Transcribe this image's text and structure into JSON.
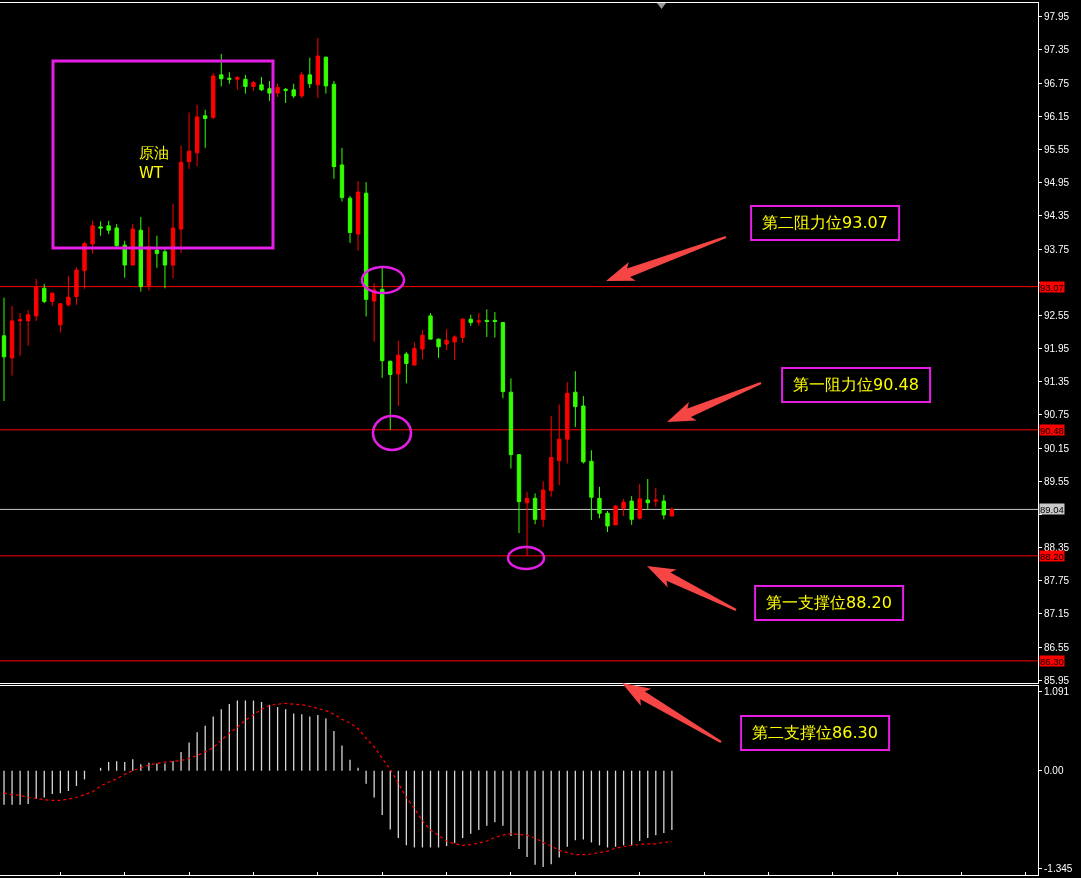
{
  "chart_data": [
    {
      "type": "candlestick",
      "title": "原油\nWT",
      "categories": [
        null,
        null,
        null,
        null,
        null,
        null,
        null,
        null,
        null,
        null,
        null,
        null,
        null,
        null,
        null,
        null,
        null,
        null,
        null,
        null,
        null,
        null,
        null,
        null,
        null,
        null,
        null,
        null,
        null,
        null,
        null,
        null,
        null,
        null,
        null,
        null,
        null,
        null,
        null,
        null,
        null,
        null,
        null,
        null,
        null,
        null,
        null,
        null,
        null,
        null,
        null,
        null,
        null,
        null,
        null,
        null,
        null,
        null,
        null,
        null,
        null,
        null,
        null,
        null,
        null,
        null,
        null,
        null,
        null,
        null,
        null,
        null,
        null,
        null,
        null,
        null,
        null,
        null,
        null,
        null,
        null,
        null,
        null,
        null,
        null,
        null,
        null,
        null,
        null,
        null,
        null,
        null,
        null,
        null,
        null,
        null,
        null,
        null,
        null,
        null,
        null,
        null,
        null,
        null,
        null,
        null,
        null,
        null,
        null,
        null,
        null,
        null,
        null,
        null,
        null,
        null,
        null,
        null,
        null,
        null,
        null,
        null,
        null,
        null,
        null,
        null,
        null,
        null,
        null
      ],
      "ohlc": [
        [
          92.18,
          92.87,
          91.0,
          91.8
        ],
        [
          91.78,
          92.72,
          91.46,
          92.45
        ],
        [
          92.45,
          92.59,
          91.82,
          92.47
        ],
        [
          92.45,
          92.65,
          92.0,
          92.56
        ],
        [
          92.54,
          93.21,
          92.45,
          93.06
        ],
        [
          93.04,
          93.12,
          92.77,
          92.8
        ],
        [
          92.8,
          92.96,
          92.72,
          92.95
        ],
        [
          92.38,
          92.77,
          92.24,
          92.76
        ],
        [
          92.74,
          93.26,
          92.71,
          92.88
        ],
        [
          92.89,
          93.42,
          92.74,
          93.37
        ],
        [
          93.36,
          93.88,
          93.03,
          93.85
        ],
        [
          93.84,
          94.26,
          93.67,
          94.17
        ],
        [
          94.15,
          94.25,
          93.99,
          94.13
        ],
        [
          94.17,
          94.26,
          94.02,
          94.09
        ],
        [
          94.13,
          94.2,
          93.79,
          93.81
        ],
        [
          93.82,
          93.9,
          93.23,
          93.46
        ],
        [
          93.46,
          94.2,
          93.46,
          94.11
        ],
        [
          94.09,
          94.33,
          92.98,
          93.07
        ],
        [
          93.07,
          94.15,
          93.0,
          93.79
        ],
        [
          93.73,
          93.99,
          93.41,
          93.67
        ],
        [
          93.7,
          93.75,
          93.04,
          93.46
        ],
        [
          93.46,
          94.57,
          93.22,
          94.13
        ],
        [
          94.11,
          95.62,
          93.68,
          95.32
        ],
        [
          95.33,
          96.22,
          95.2,
          95.52
        ],
        [
          95.49,
          96.36,
          95.25,
          96.14
        ],
        [
          96.16,
          96.27,
          95.58,
          96.11
        ],
        [
          96.13,
          96.93,
          96.1,
          96.88
        ],
        [
          96.9,
          97.28,
          96.69,
          96.83
        ],
        [
          96.84,
          96.95,
          96.74,
          96.82
        ],
        [
          96.82,
          96.88,
          96.63,
          96.85
        ],
        [
          96.82,
          96.9,
          96.56,
          96.69
        ],
        [
          96.69,
          96.79,
          96.61,
          96.76
        ],
        [
          96.72,
          96.86,
          96.61,
          96.63
        ],
        [
          96.65,
          96.79,
          96.43,
          96.57
        ],
        [
          96.57,
          96.74,
          96.5,
          96.67
        ],
        [
          96.64,
          96.66,
          96.39,
          96.62
        ],
        [
          96.63,
          96.74,
          96.48,
          96.52
        ],
        [
          96.52,
          96.95,
          96.48,
          96.9
        ],
        [
          96.9,
          97.21,
          96.66,
          96.74
        ],
        [
          96.72,
          97.57,
          96.48,
          97.24
        ],
        [
          97.22,
          97.23,
          96.56,
          96.7
        ],
        [
          96.73,
          96.79,
          95.02,
          95.24
        ],
        [
          95.27,
          95.58,
          94.61,
          94.68
        ],
        [
          94.67,
          94.71,
          93.86,
          94.05
        ],
        [
          94.02,
          94.98,
          93.72,
          94.78
        ],
        [
          94.76,
          94.96,
          92.53,
          92.84
        ],
        [
          92.81,
          93.13,
          92.07,
          93.01
        ],
        [
          93.02,
          93.42,
          91.42,
          91.73
        ],
        [
          91.72,
          91.73,
          90.48,
          91.48
        ],
        [
          91.49,
          92.09,
          90.91,
          91.83
        ],
        [
          91.85,
          91.89,
          91.32,
          91.68
        ],
        [
          91.65,
          92.06,
          91.65,
          91.95
        ],
        [
          91.94,
          92.28,
          91.76,
          92.19
        ],
        [
          92.54,
          92.59,
          92.12,
          92.12
        ],
        [
          92.12,
          92.13,
          91.78,
          91.98
        ],
        [
          92.03,
          92.3,
          91.92,
          92.1
        ],
        [
          92.07,
          92.19,
          91.74,
          92.16
        ],
        [
          92.15,
          92.5,
          92.05,
          92.48
        ],
        [
          92.48,
          92.56,
          92.36,
          92.42
        ],
        [
          92.43,
          92.59,
          92.36,
          92.45
        ],
        [
          92.46,
          92.66,
          92.16,
          92.44
        ],
        [
          92.46,
          92.61,
          92.15,
          92.44
        ],
        [
          92.42,
          92.43,
          91.05,
          91.17
        ],
        [
          91.16,
          91.41,
          89.78,
          90.03
        ],
        [
          90.03,
          90.04,
          88.61,
          89.18
        ],
        [
          89.16,
          89.36,
          88.2,
          89.24
        ],
        [
          89.24,
          89.33,
          88.77,
          88.86
        ],
        [
          88.86,
          89.55,
          88.72,
          89.39
        ],
        [
          89.38,
          90.73,
          89.27,
          89.98
        ],
        [
          89.92,
          90.94,
          89.48,
          90.31
        ],
        [
          90.31,
          91.34,
          89.87,
          91.14
        ],
        [
          91.16,
          91.54,
          90.53,
          90.9
        ],
        [
          90.91,
          91.09,
          89.87,
          89.9
        ],
        [
          89.91,
          90.11,
          88.85,
          89.26
        ],
        [
          89.24,
          89.45,
          88.88,
          88.97
        ],
        [
          88.97,
          89.01,
          88.63,
          88.74
        ],
        [
          88.76,
          89.12,
          88.76,
          89.1
        ],
        [
          89.06,
          89.23,
          88.92,
          89.17
        ],
        [
          89.19,
          89.28,
          88.76,
          88.86
        ],
        [
          88.88,
          89.5,
          88.86,
          89.23
        ],
        [
          89.21,
          89.59,
          89.03,
          89.16
        ],
        [
          89.19,
          89.43,
          89.09,
          89.21
        ],
        [
          89.19,
          89.3,
          88.86,
          88.94
        ],
        [
          88.92,
          89.08,
          88.92,
          89.04
        ],
        null,
        null,
        null,
        null,
        null,
        null,
        null,
        null,
        null,
        null,
        null,
        null,
        null,
        null,
        null,
        null,
        null,
        null,
        null,
        null,
        null,
        null,
        null,
        null,
        null,
        null,
        null,
        null,
        null,
        null,
        null,
        null,
        null,
        null,
        null,
        null,
        null,
        null,
        null,
        null,
        null,
        null,
        null,
        null,
        null
      ],
      "colors": [
        "#33ff00",
        "#ff0000",
        "#ff0000",
        "#ff0000",
        "#ff0000",
        "#33ff00",
        "#ff0000",
        "#ff0000",
        "#ff0000",
        "#ff0000",
        "#ff0000",
        "#ff0000",
        "#33ff00",
        "#33ff00",
        "#33ff00",
        "#33ff00",
        "#ff0000",
        "#33ff00",
        "#ff0000",
        "#33ff00",
        "#33ff00",
        "#ff0000",
        "#ff0000",
        "#ff0000",
        "#ff0000",
        "#33ff00",
        "#ff0000",
        "#33ff00",
        "#33ff00",
        "#ff0000",
        "#33ff00",
        "#ff0000",
        "#33ff00",
        "#33ff00",
        "#ff0000",
        "#33ff00",
        "#33ff00",
        "#ff0000",
        "#33ff00",
        "#ff0000",
        "#33ff00",
        "#33ff00",
        "#33ff00",
        "#33ff00",
        "#ff0000",
        "#33ff00",
        "#ff0000",
        "#33ff00",
        "#33ff00",
        "#ff0000",
        "#33ff00",
        "#ff0000",
        "#ff0000",
        "#33ff00",
        "#33ff00",
        "#ff0000",
        "#ff0000",
        "#ff0000",
        "#33ff00",
        "#ff0000",
        "#33ff00",
        "#33ff00",
        "#33ff00",
        "#33ff00",
        "#33ff00",
        "#ff0000",
        "#33ff00",
        "#ff0000",
        "#ff0000",
        "#ff0000",
        "#ff0000",
        "#33ff00",
        "#33ff00",
        "#33ff00",
        "#33ff00",
        "#33ff00",
        "#ff0000",
        "#ff0000",
        "#33ff00",
        "#ff0000",
        "#33ff00",
        "#ff0000",
        "#33ff00",
        "#ff0000",
        null,
        null,
        null,
        null,
        null,
        null,
        null,
        null,
        null,
        null,
        null,
        null,
        null,
        null,
        null,
        null,
        null,
        null,
        null,
        null,
        null,
        null,
        null,
        null,
        null,
        null,
        null,
        null,
        null,
        null,
        null,
        null,
        null,
        null,
        null,
        null,
        null,
        null,
        null,
        null,
        null,
        null,
        null,
        null,
        null
      ],
      "ylim": [
        85.9,
        98.2
      ],
      "yticks": [
        97.95,
        97.35,
        96.75,
        96.15,
        95.55,
        94.95,
        94.35,
        93.75,
        {
          "value": 93.15,
          "label": null
        },
        92.55,
        91.95,
        91.35,
        90.75,
        90.15,
        89.55,
        {
          "value": 88.95,
          "label": null
        },
        88.35,
        87.75,
        87.15,
        86.55,
        85.95
      ],
      "ref_lines": [
        {
          "axis": "y",
          "value": 93.07,
          "label": "93.07",
          "color": "#ff0000"
        },
        {
          "axis": "y",
          "value": 90.48,
          "label": "90.48",
          "color": "#ff0000"
        },
        {
          "axis": "y",
          "value": 89.04,
          "label": "89.04",
          "color": "#c8c8c8"
        },
        {
          "axis": "y",
          "value": 88.2,
          "label": "88.20",
          "color": "#ff0000"
        },
        {
          "axis": "y",
          "value": 86.3,
          "label": "86.30",
          "color": "#ff0000"
        }
      ],
      "annotations": [
        "第二阻力位93.07",
        "第一阻力位90.48",
        "第一支撑位88.20",
        "第二支撑位86.30"
      ]
    },
    {
      "type": "bar",
      "categories": [
        null,
        null,
        null,
        null,
        null,
        null,
        null,
        null,
        null,
        null,
        null,
        null,
        null,
        null,
        null,
        null,
        null,
        null,
        null,
        null,
        null,
        null,
        null,
        null,
        null,
        null,
        null,
        null,
        null,
        null,
        null,
        null,
        null,
        null,
        null,
        null,
        null,
        null,
        null,
        null,
        null,
        null,
        null,
        null,
        null,
        null,
        null,
        null,
        null,
        null,
        null,
        null,
        null,
        null,
        null,
        null,
        null,
        null,
        null,
        null,
        null,
        null,
        null,
        null,
        null,
        null,
        null,
        null,
        null,
        null,
        null,
        null,
        null,
        null,
        null,
        null,
        null,
        null,
        null,
        null,
        null,
        null,
        null,
        null,
        null,
        null,
        null,
        null,
        null,
        null,
        null,
        null,
        null,
        null,
        null,
        null,
        null,
        null,
        null,
        null,
        null,
        null,
        null,
        null,
        null,
        null,
        null,
        null,
        null,
        null,
        null,
        null,
        null,
        null,
        null,
        null,
        null,
        null,
        null,
        null,
        null,
        null,
        null,
        null,
        null,
        null,
        null,
        null,
        null
      ],
      "series": [
        {
          "color": "#d8d8d8",
          "values": [
            -0.47,
            -0.47,
            -0.47,
            -0.46,
            -0.39,
            -0.37,
            -0.32,
            -0.31,
            -0.28,
            -0.21,
            -0.12,
            0,
            0.04,
            0.12,
            0.13,
            0.12,
            0.16,
            0.09,
            0.11,
            0.1,
            0.1,
            0.13,
            0.26,
            0.39,
            0.53,
            0.62,
            0.75,
            0.85,
            0.92,
            0.97,
            0.97,
            0.97,
            0.95,
            0.91,
            0.88,
            0.85,
            0.79,
            0.78,
            0.75,
            0.77,
            0.72,
            0.55,
            0.35,
            0.15,
            0.04,
            -0.18,
            -0.37,
            -0.61,
            -0.81,
            -0.93,
            -1.03,
            -1.06,
            -1.06,
            -1.06,
            -1.06,
            -1.04,
            -1.0,
            -0.93,
            -0.87,
            -0.82,
            -0.76,
            -0.71,
            -0.76,
            -0.9,
            -1.08,
            -1.19,
            -1.3,
            -1.33,
            -1.29,
            -1.2,
            -1.05,
            -0.96,
            -0.95,
            -0.99,
            -1.03,
            -1.06,
            -1.05,
            -1.03,
            -1.03,
            -0.97,
            -0.93,
            -0.89,
            -0.86,
            -0.82,
            null,
            null,
            null,
            null,
            null,
            null,
            null,
            null,
            null,
            null,
            null,
            null,
            null,
            null,
            null,
            null,
            null,
            null,
            null,
            null,
            null,
            null,
            null,
            null,
            null,
            null,
            null,
            null,
            null,
            null,
            null,
            null,
            null,
            null,
            null,
            null,
            null,
            null,
            null,
            null,
            null,
            null,
            null,
            null,
            null
          ]
        },
        {
          "type": "line",
          "color": "#ff0000",
          "line_style": "dotted",
          "values": [
            -0.31,
            -0.33,
            -0.34,
            -0.37,
            -0.38,
            -0.4,
            -0.41,
            -0.41,
            -0.39,
            -0.37,
            -0.33,
            -0.29,
            -0.21,
            -0.16,
            -0.11,
            -0.05,
            0.0,
            0.04,
            0.08,
            0.1,
            0.12,
            0.13,
            0.14,
            0.17,
            0.21,
            0.26,
            0.32,
            0.42,
            0.52,
            0.6,
            0.7,
            0.77,
            0.85,
            0.9,
            0.92,
            0.93,
            0.92,
            0.91,
            0.89,
            0.86,
            0.83,
            0.78,
            0.71,
            0.66,
            0.58,
            0.45,
            0.33,
            0.17,
            0.02,
            -0.17,
            -0.37,
            -0.52,
            -0.69,
            -0.82,
            -0.89,
            -0.97,
            -1.01,
            -1.03,
            -1.02,
            -1.0,
            -0.97,
            -0.92,
            -0.89,
            -0.87,
            -0.88,
            -0.89,
            -0.93,
            -0.99,
            -1.04,
            -1.1,
            -1.13,
            -1.16,
            -1.16,
            -1.15,
            -1.13,
            -1.11,
            -1.07,
            -1.05,
            -1.03,
            -1.02,
            -1.01,
            -1.01,
            -0.99,
            -0.98,
            null,
            null,
            null,
            null,
            null,
            null,
            null,
            null,
            null,
            null,
            null,
            null,
            null,
            null,
            null,
            null,
            null,
            null,
            null,
            null,
            null,
            null,
            null,
            null,
            null,
            null,
            null,
            null,
            null,
            null,
            null,
            null,
            null,
            null,
            null,
            null,
            null,
            null,
            null,
            null,
            null,
            null,
            null,
            null,
            null
          ]
        }
      ],
      "ylim": [
        -1.44,
        1.17
      ],
      "yticks": [
        1.091,
        {
          "value": 0,
          "label": "0.00"
        },
        -1.345
      ]
    }
  ]
}
